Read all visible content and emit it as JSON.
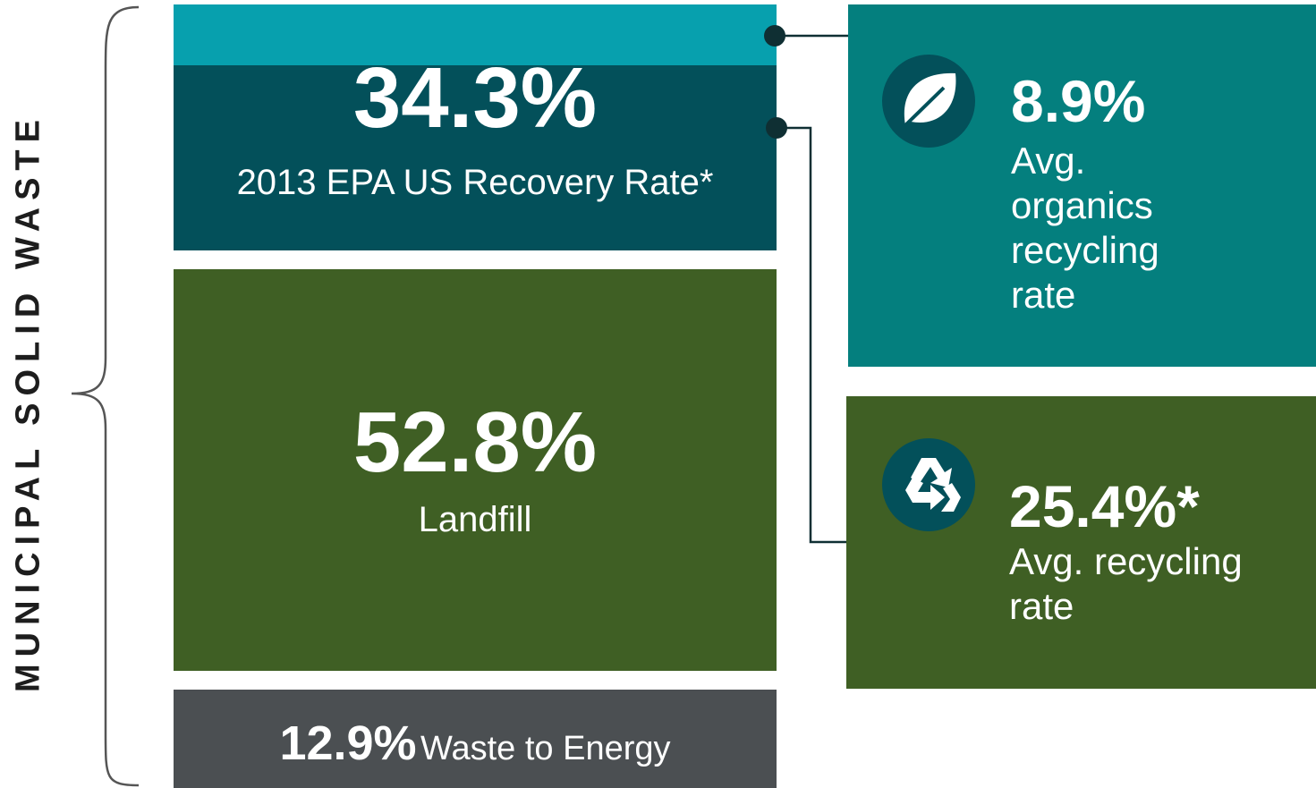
{
  "side_label": "MUNICIPAL SOLID WASTE",
  "recovery": {
    "value": "34.3%",
    "label": "2013 EPA US Recovery Rate*"
  },
  "landfill": {
    "value": "52.8%",
    "label": "Landfill"
  },
  "energy": {
    "value": "12.9%",
    "label": "Waste to Energy"
  },
  "organics": {
    "value": "8.9%",
    "label": "Avg. organics recycling rate"
  },
  "recycling": {
    "value": "25.4%*",
    "label": "Avg. recycling rate"
  }
}
